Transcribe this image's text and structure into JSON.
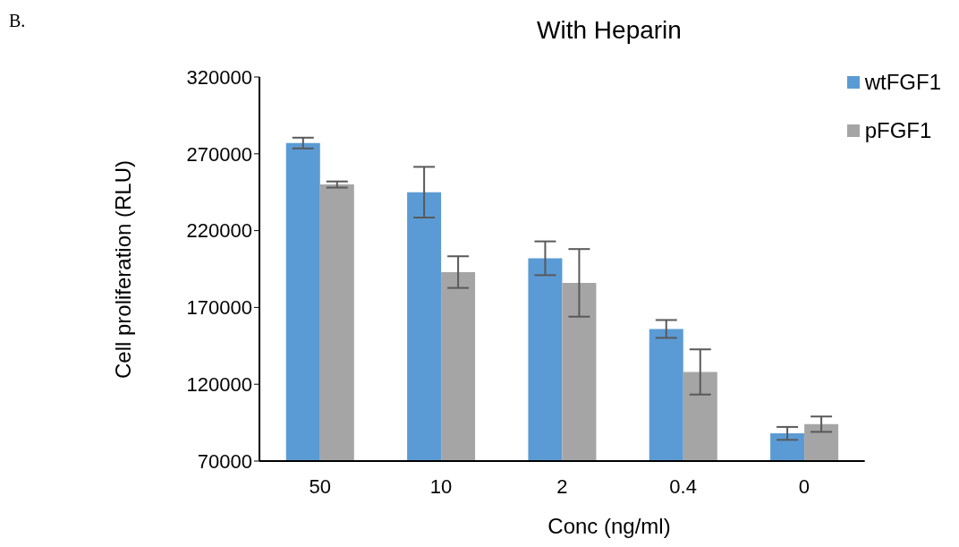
{
  "chart_data": {
    "type": "bar",
    "title": "With Heparin",
    "xlabel": "Conc (ng/ml)",
    "ylabel": "Cell proliferation (RLU)",
    "annotations": [
      "B."
    ],
    "categories": [
      "50",
      "10",
      "2",
      "0.4",
      "0"
    ],
    "series": [
      {
        "name": "wtFGF1",
        "color": "#5b9bd5",
        "values": [
          277000,
          245000,
          202000,
          156000,
          88000
        ],
        "errors": [
          3500,
          16500,
          11000,
          5800,
          4200
        ]
      },
      {
        "name": "pFGF1",
        "color": "#a5a5a5",
        "values": [
          250000,
          193000,
          186000,
          128000,
          94000
        ],
        "errors": [
          2000,
          10300,
          22000,
          14700,
          5000
        ]
      }
    ],
    "ylim": [
      70000,
      320000
    ],
    "yticks": [
      70000,
      120000,
      170000,
      220000,
      270000,
      320000
    ],
    "grid": false,
    "legend": "top right"
  }
}
